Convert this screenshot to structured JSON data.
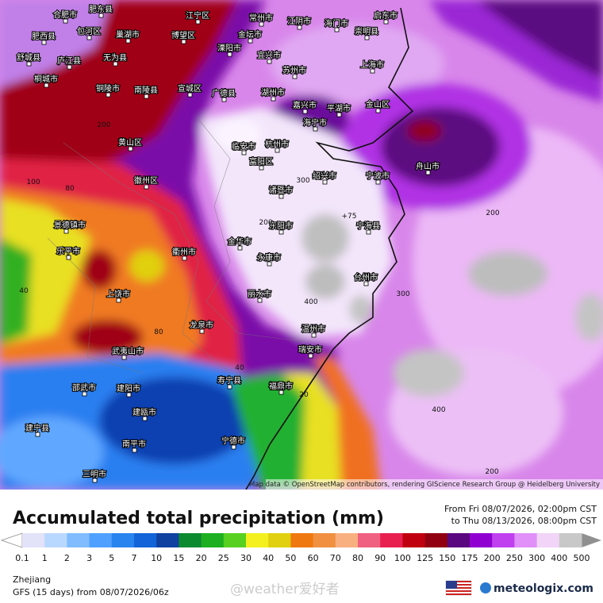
{
  "map": {
    "city_labels": [
      "合肥市",
      "肥东县",
      "肥西县",
      "包河区",
      "巢湖市",
      "博望区",
      "江宁区",
      "常州市",
      "江阴市",
      "海门市",
      "启东市",
      "崇明县",
      "金坛市",
      "溧阳市",
      "宜兴市",
      "苏州市",
      "上海市",
      "庐江县",
      "无为县",
      "舒城县",
      "桐城市",
      "铜陵市",
      "南陵县",
      "宣城区",
      "广德县",
      "湖州市",
      "嘉兴市",
      "平湖市",
      "金山区",
      "海宁市",
      "杭州市",
      "临安市",
      "富阳区",
      "诸暨市",
      "绍兴市",
      "宁波市",
      "舟山市",
      "宁海县",
      "金华市",
      "东阳市",
      "永康市",
      "丽水市",
      "台州市",
      "温州市",
      "瑞安市",
      "黄山区",
      "徽州区",
      "景德镇市",
      "乐平市",
      "上饶市",
      "衢州市",
      "龙泉市",
      "武夷山市",
      "南平市",
      "建瓯市",
      "建阳市",
      "宁德市",
      "福鼎市",
      "三明市",
      "建宁县",
      "邵武市",
      "寿宁县"
    ],
    "contour_labels": [
      "200",
      "100",
      "80",
      "80",
      "40",
      "40",
      "20",
      "300",
      "200",
      "400",
      "300",
      "200",
      "400",
      "200",
      "+75"
    ],
    "attribution": "Map data © OpenStreetMap contributors, rendering GIScience Research Group @ Heidelberg University"
  },
  "footer": {
    "title": "Accumulated total precipitation (mm)",
    "period_from": "From Fri 08/07/2026, 02:00pm CST",
    "period_to": "to Thu 08/13/2026, 08:00pm CST",
    "legend": {
      "labels": [
        "0.1",
        "1",
        "2",
        "3",
        "5",
        "7",
        "10",
        "15",
        "20",
        "25",
        "30",
        "40",
        "50",
        "60",
        "70",
        "80",
        "90",
        "100",
        "125",
        "150",
        "175",
        "200",
        "250",
        "300",
        "400",
        "500"
      ],
      "colors": [
        "#e2e2f8",
        "#b8d8ff",
        "#80bcff",
        "#50a0ff",
        "#2a84f0",
        "#1264d8",
        "#1040a0",
        "#0c8a30",
        "#1cb020",
        "#58d020",
        "#f4f020",
        "#e0d010",
        "#f07810",
        "#f09040",
        "#f8b080",
        "#f06080",
        "#e82050",
        "#c00010",
        "#900010",
        "#5a0880",
        "#9000d0",
        "#c040f0",
        "#e090f8",
        "#f2d4f8",
        "#c8c8c8"
      ]
    },
    "region": "Zhejiang",
    "model": "GFS (15 days) from 08/07/2026/06z",
    "watermark": "@weather爱好者",
    "logo": "meteologix.com"
  }
}
